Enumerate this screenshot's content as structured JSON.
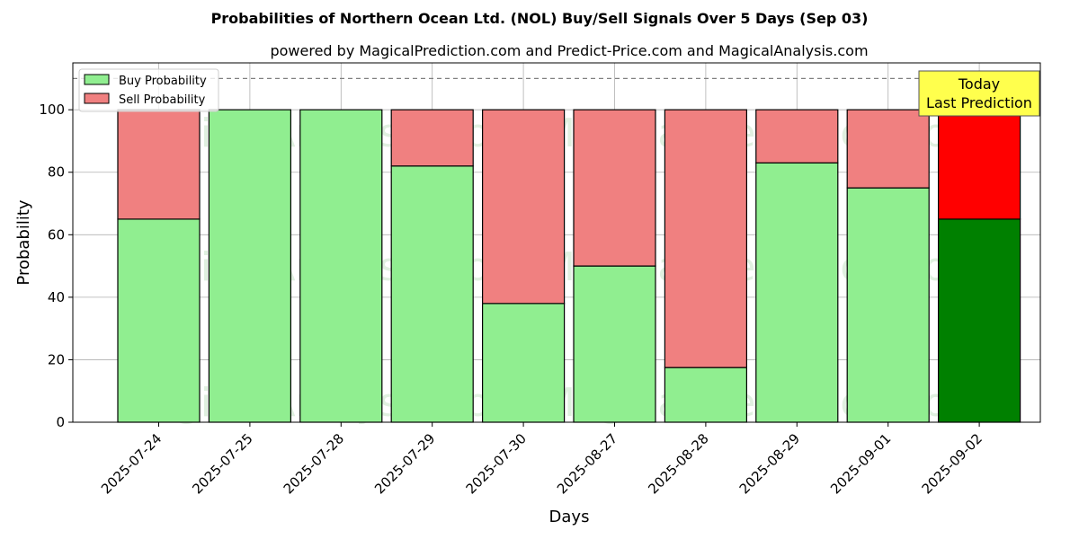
{
  "chart_data": {
    "type": "bar",
    "stacked": true,
    "title": "Probabilities of Northern Ocean Ltd. (NOL) Buy/Sell Signals Over 5 Days (Sep 03)",
    "subtitle": "powered by MagicalPrediction.com and Predict-Price.com and MagicalAnalysis.com",
    "xlabel": "Days",
    "ylabel": "Probability",
    "ylim": [
      0,
      115
    ],
    "yticks": [
      0,
      20,
      40,
      60,
      80,
      100
    ],
    "grid": true,
    "legend_position": "top-left",
    "reference_line": 110,
    "categories": [
      "2025-07-24",
      "2025-07-25",
      "2025-07-28",
      "2025-07-29",
      "2025-07-30",
      "2025-08-27",
      "2025-08-28",
      "2025-08-29",
      "2025-09-01",
      "2025-09-02"
    ],
    "series": [
      {
        "name": "Buy Probability",
        "color": "#90ee90",
        "highlight_color": "#008000",
        "values": [
          65,
          100,
          100,
          82,
          38,
          50,
          17.5,
          83,
          75,
          65
        ]
      },
      {
        "name": "Sell Probability",
        "color": "#f08080",
        "highlight_color": "#ff0000",
        "values": [
          35,
          0,
          0,
          18,
          62,
          50,
          82.5,
          17,
          25,
          35
        ]
      }
    ],
    "highlight_index": 9,
    "annotation": {
      "lines": [
        "Today",
        "Last Prediction"
      ],
      "background": "#ffff4d"
    },
    "watermarks": [
      "MagicalAnalysis.com",
      "MagicalPrediction.com"
    ]
  }
}
